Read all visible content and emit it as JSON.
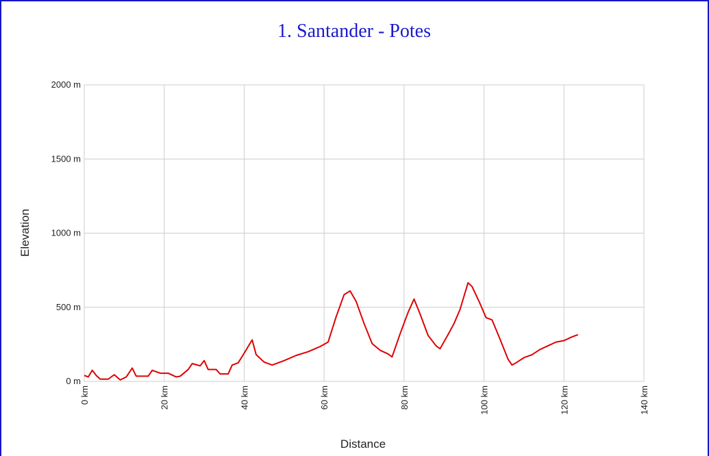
{
  "chart_data": {
    "type": "line",
    "title": "1. Santander - Potes",
    "xlabel": "Distance",
    "ylabel": "Elevation",
    "x": [
      0,
      1,
      2,
      3,
      4,
      6,
      7.5,
      9,
      10.5,
      12,
      13,
      15,
      16,
      17,
      19,
      21,
      23,
      24,
      26,
      27,
      29,
      30,
      31,
      33,
      34,
      36,
      37,
      38.5,
      40,
      42,
      43,
      45,
      47,
      50,
      53,
      56,
      59,
      61,
      63,
      65,
      66.5,
      68,
      70,
      72,
      74,
      76,
      77,
      79,
      81,
      82.5,
      84,
      86,
      88,
      89,
      91,
      92.5,
      94,
      96,
      97,
      99,
      100.5,
      102,
      104,
      106,
      107,
      108,
      110,
      112,
      114,
      116,
      118,
      120,
      122,
      123.5
    ],
    "series": [
      {
        "color": "#dd0000",
        "values": [
          40,
          30,
          75,
          40,
          15,
          15,
          45,
          10,
          30,
          90,
          35,
          35,
          35,
          75,
          55,
          55,
          30,
          35,
          80,
          120,
          105,
          140,
          80,
          80,
          50,
          50,
          110,
          125,
          190,
          280,
          180,
          130,
          110,
          140,
          175,
          200,
          235,
          265,
          435,
          585,
          610,
          540,
          390,
          255,
          210,
          185,
          165,
          320,
          465,
          555,
          455,
          310,
          240,
          220,
          315,
          390,
          485,
          665,
          640,
          525,
          430,
          415,
          285,
          150,
          110,
          125,
          160,
          180,
          215,
          240,
          265,
          275,
          300,
          315
        ]
      }
    ],
    "xlim": [
      0,
      140
    ],
    "xticks": [
      {
        "value": 0,
        "label": "0 km"
      },
      {
        "value": 20,
        "label": "20 km"
      },
      {
        "value": 40,
        "label": "40 km"
      },
      {
        "value": 60,
        "label": "60 km"
      },
      {
        "value": 80,
        "label": "80 km"
      },
      {
        "value": 100,
        "label": "100 km"
      },
      {
        "value": 120,
        "label": "120 km"
      },
      {
        "value": 140,
        "label": "140 km"
      }
    ],
    "ylim": [
      0,
      2000
    ],
    "yticks": [
      {
        "value": 0,
        "label": "0 m"
      },
      {
        "value": 500,
        "label": "500 m"
      },
      {
        "value": 1000,
        "label": "1000 m"
      },
      {
        "value": 1500,
        "label": "1500 m"
      },
      {
        "value": 2000,
        "label": "2000 m"
      }
    ],
    "grid": true
  }
}
